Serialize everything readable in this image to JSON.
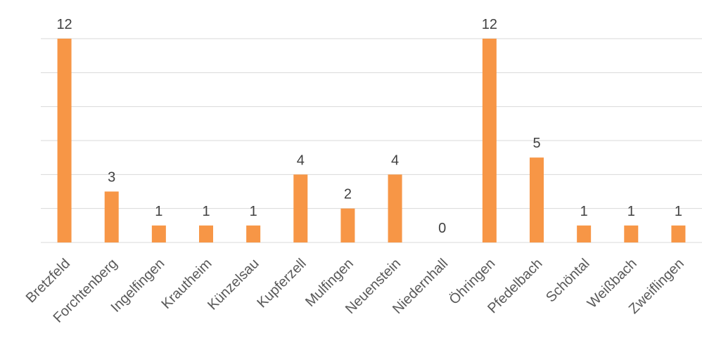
{
  "chart_data": {
    "type": "bar",
    "title": "",
    "xlabel": "",
    "ylabel": "",
    "ylim": [
      0,
      12
    ],
    "grid": true,
    "color": "#f79646",
    "categories": [
      "Bretzfeld",
      "Forchtenberg",
      "Ingelfingen",
      "Krautheim",
      "Künzelsau",
      "Kupferzell",
      "Mulfingen",
      "Neuenstein",
      "Niedernhall",
      "Öhringen",
      "Pfedelbach",
      "Schöntal",
      "Weißbach",
      "Zweiflingen"
    ],
    "values": [
      12,
      3,
      1,
      1,
      1,
      4,
      2,
      4,
      0,
      12,
      5,
      1,
      1,
      1
    ],
    "data_labels": [
      "12",
      "3",
      "1",
      "1",
      "1",
      "4",
      "2",
      "4",
      "0",
      "12",
      "5",
      "1",
      "1",
      "1"
    ]
  }
}
